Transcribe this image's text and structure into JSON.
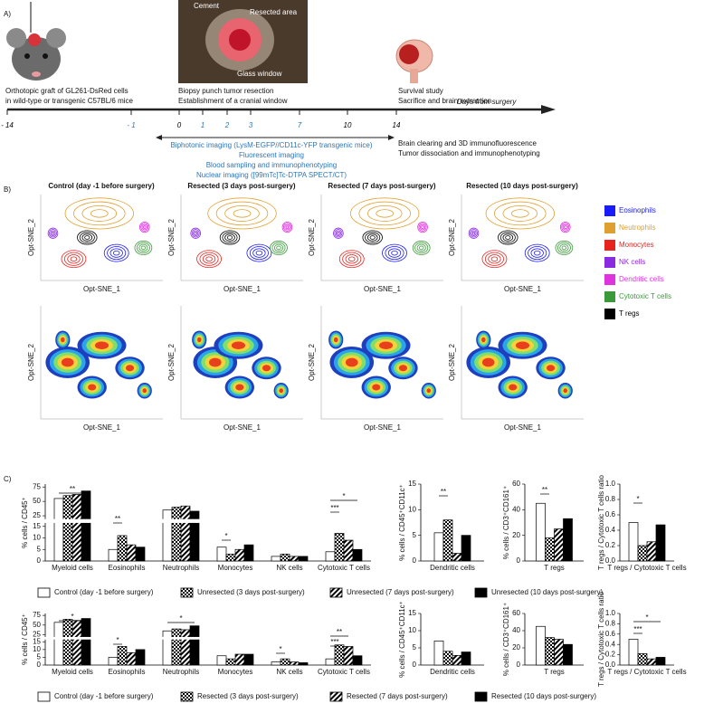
{
  "panel_a": {
    "label": "A)",
    "graft": [
      "Orthotopic graft of GL261-DsRed cells",
      "in wild-type or transgenic C57BL/6 mice"
    ],
    "photo_labels": [
      "Cement",
      "Resected area",
      "Glass window"
    ],
    "resection": [
      "Biopsy punch tumor resection",
      "Establishment of a cranial window"
    ],
    "survival": [
      "Survival study",
      "Sacrifice and brain extraction"
    ],
    "axis_title": "Days from surgery",
    "ticks": [
      {
        "label": "- 14",
        "color": "#000000"
      },
      {
        "label": "- 1",
        "color": "#2e75b6"
      },
      {
        "label": "0",
        "color": "#000000"
      },
      {
        "label": "1",
        "color": "#2e75b6"
      },
      {
        "label": "2",
        "color": "#2e75b6"
      },
      {
        "label": "3",
        "color": "#2e75b6"
      },
      {
        "label": "7",
        "color": "#2e75b6"
      },
      {
        "label": "10",
        "color": "#000000"
      },
      {
        "label": "14",
        "color": "#000000"
      }
    ],
    "imaging": [
      "Biphotonic imaging (LysM-EGFP//CD11c-YFP transgenic mice)",
      "Fluorescent imaging",
      "Blood sampling and immunophenotyping",
      "Nuclear imaging ([99mTc]Tc-DTPA SPECT/CT)"
    ],
    "end_steps": [
      "Brain clearing and 3D immunofluorescence",
      "Tumor dissociation and immunophenotyping"
    ]
  },
  "panel_b": {
    "label": "B)",
    "titles": [
      "Control (day -1 before surgery)",
      "Resected (3 days post-surgery)",
      "Resected (7 days post-surgery)",
      "Resected (10 days post-surgery)"
    ],
    "x_axis": "Opt-SNE_1",
    "y_axis": "Opt-SNE_2",
    "legend": [
      {
        "name": "Eosinophils",
        "color": "#1a1aff"
      },
      {
        "name": "Neutrophils",
        "color": "#e0a030"
      },
      {
        "name": "Monocytes",
        "color": "#e8231e"
      },
      {
        "name": "NK cells",
        "color": "#8a2be2"
      },
      {
        "name": "Dendritic cells",
        "color": "#e033e0"
      },
      {
        "name": "Cytotoxic T cells",
        "color": "#3a9a3a"
      },
      {
        "name": "T regs",
        "color": "#000000"
      }
    ]
  },
  "panel_c": {
    "label": "C)"
  },
  "chart_data": [
    {
      "type": "bar",
      "ylabel": "% cells / CD45⁺",
      "categories": [
        "Myeloid cells",
        "Eosinophils",
        "Neutrophils",
        "Monocytes",
        "NK cells",
        "Cytotoxic T cells"
      ],
      "series": [
        {
          "name": "Control (day -1 before surgery)",
          "pattern": "none",
          "color": "#000000",
          "values": [
            55,
            5,
            35,
            6,
            2,
            4
          ]
        },
        {
          "name": "Unresected (3 days post-surgery)",
          "pattern": "checker",
          "color": "#000000",
          "values": [
            60,
            11,
            40,
            3,
            3,
            12
          ]
        },
        {
          "name": "Unresected (7 days post-surgery)",
          "pattern": "stripes",
          "color": "#000000",
          "values": [
            62,
            7,
            42,
            5,
            2,
            9
          ]
        },
        {
          "name": "Unresected (10 days post-surgery)",
          "pattern": "solid",
          "color": "#000000",
          "values": [
            68,
            6,
            33,
            7,
            2,
            5
          ]
        }
      ],
      "ylim": [
        0,
        80
      ],
      "ybreak": [
        15,
        20
      ],
      "yticks": [
        0,
        5,
        10,
        15,
        25,
        50,
        75
      ],
      "annotations": [
        "**",
        "**",
        "*",
        "*",
        "***"
      ]
    },
    {
      "type": "bar",
      "ylabel": "% cells / CD45⁺CD11c⁺",
      "categories": [
        "Dendritic cells"
      ],
      "series": [
        {
          "pattern": "none",
          "color": "#000000",
          "values": [
            5.5
          ]
        },
        {
          "pattern": "checker",
          "color": "#000000",
          "values": [
            8
          ]
        },
        {
          "pattern": "stripes",
          "color": "#000000",
          "values": [
            1.5
          ]
        },
        {
          "pattern": "solid",
          "color": "#000000",
          "values": [
            5
          ]
        }
      ],
      "ylim": [
        0,
        15
      ],
      "yticks": [
        0,
        5,
        10,
        15
      ],
      "annotations": [
        "**"
      ]
    },
    {
      "type": "bar",
      "ylabel": "% cells / CD3⁺CD161⁺",
      "categories": [
        "T regs"
      ],
      "series": [
        {
          "pattern": "none",
          "color": "#000000",
          "values": [
            45
          ]
        },
        {
          "pattern": "checker",
          "color": "#000000",
          "values": [
            18
          ]
        },
        {
          "pattern": "stripes",
          "color": "#000000",
          "values": [
            25
          ]
        },
        {
          "pattern": "solid",
          "color": "#000000",
          "values": [
            33
          ]
        }
      ],
      "ylim": [
        0,
        60
      ],
      "yticks": [
        0,
        20,
        40,
        60
      ],
      "annotations": [
        "**"
      ]
    },
    {
      "type": "bar",
      "ylabel": "T regs / Cytotoxic T cells ratio",
      "categories": [
        "T regs / Cytotoxic T cells"
      ],
      "series": [
        {
          "pattern": "none",
          "color": "#000000",
          "values": [
            0.5
          ]
        },
        {
          "pattern": "checker",
          "color": "#000000",
          "values": [
            0.2
          ]
        },
        {
          "pattern": "stripes",
          "color": "#000000",
          "values": [
            0.25
          ]
        },
        {
          "pattern": "solid",
          "color": "#000000",
          "values": [
            0.47
          ]
        }
      ],
      "ylim": [
        0,
        1
      ],
      "yticks": [
        {
          "value": 0,
          "label": "0.0"
        },
        0.2,
        0.4,
        0.6,
        0.8,
        {
          "value": 1,
          "label": "1.0"
        }
      ],
      "annotations": [
        "*"
      ]
    },
    {
      "type": "bar",
      "ylabel": "% cells / CD45⁺",
      "categories": [
        "Myeloid cells",
        "Eosinophils",
        "Neutrophils",
        "Monocytes",
        "NK cells",
        "Cytotoxic T cells"
      ],
      "series": [
        {
          "name": "Control (day -1 before surgery)",
          "pattern": "none",
          "color": "#000000",
          "values": [
            57,
            5,
            35,
            6,
            2,
            4
          ]
        },
        {
          "name": "Resected (3 days post-surgery)",
          "pattern": "checker",
          "color": "#000000",
          "values": [
            65,
            12,
            40,
            4,
            4,
            13
          ]
        },
        {
          "name": "Resected (7 days post-surgery)",
          "pattern": "stripes",
          "color": "#000000",
          "values": [
            62,
            8,
            38,
            7,
            2,
            12
          ]
        },
        {
          "name": "Resected (10 days post-surgery)",
          "pattern": "solid",
          "color": "#000000",
          "values": [
            67,
            10,
            48,
            7,
            1.5,
            6
          ]
        }
      ],
      "ylim": [
        0,
        80
      ],
      "ybreak": [
        15,
        20
      ],
      "yticks": [
        0,
        5,
        10,
        15,
        25,
        50,
        75
      ],
      "annotations": [
        "*",
        "*",
        "*",
        "*",
        "**",
        "***"
      ]
    },
    {
      "type": "bar",
      "ylabel": "% cells / CD45⁺CD11c⁺",
      "categories": [
        "Dendritic cells"
      ],
      "series": [
        {
          "pattern": "none",
          "color": "#000000",
          "values": [
            7
          ]
        },
        {
          "pattern": "checker",
          "color": "#000000",
          "values": [
            4
          ]
        },
        {
          "pattern": "stripes",
          "color": "#000000",
          "values": [
            2.8
          ]
        },
        {
          "pattern": "solid",
          "color": "#000000",
          "values": [
            3.8
          ]
        }
      ],
      "ylim": [
        0,
        15
      ],
      "yticks": [
        0,
        5,
        10,
        15
      ],
      "annotations": []
    },
    {
      "type": "bar",
      "ylabel": "% cells / CD3⁺CD161⁺",
      "categories": [
        "T regs"
      ],
      "series": [
        {
          "pattern": "none",
          "color": "#000000",
          "values": [
            45
          ]
        },
        {
          "pattern": "checker",
          "color": "#000000",
          "values": [
            32
          ]
        },
        {
          "pattern": "stripes",
          "color": "#000000",
          "values": [
            30
          ]
        },
        {
          "pattern": "solid",
          "color": "#000000",
          "values": [
            24
          ]
        }
      ],
      "ylim": [
        0,
        60
      ],
      "yticks": [
        0,
        20,
        40,
        60
      ],
      "annotations": []
    },
    {
      "type": "bar",
      "ylabel": "T regs / Cytotoxic T cells ratio",
      "categories": [
        "T regs / Cytotoxic T cells"
      ],
      "series": [
        {
          "pattern": "none",
          "color": "#000000",
          "values": [
            0.5
          ]
        },
        {
          "pattern": "checker",
          "color": "#000000",
          "values": [
            0.22
          ]
        },
        {
          "pattern": "stripes",
          "color": "#000000",
          "values": [
            0.12
          ]
        },
        {
          "pattern": "solid",
          "color": "#000000",
          "values": [
            0.15
          ]
        }
      ],
      "ylim": [
        0,
        1
      ],
      "yticks": [
        {
          "value": 0,
          "label": "0.0"
        },
        0.2,
        0.4,
        0.6,
        0.8,
        {
          "value": 1,
          "label": "1.0"
        }
      ],
      "annotations": [
        "*",
        "***"
      ]
    }
  ]
}
